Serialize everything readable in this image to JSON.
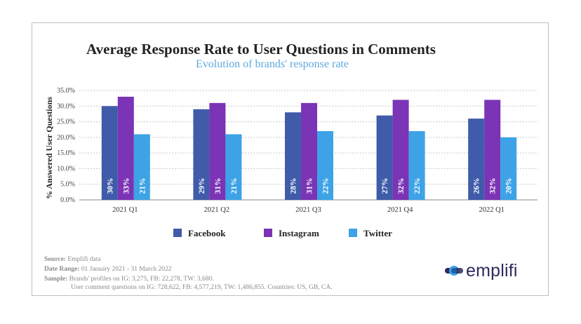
{
  "colors": {
    "facebook": "#3f5ba9",
    "instagram": "#7a34b5",
    "twitter": "#3da3e6",
    "subtitle": "#5ea9dd",
    "grid": "#c8c8c8",
    "logo_dark": "#2b2b5c"
  },
  "chart_data": {
    "type": "bar",
    "title": "Average Response Rate to User Questions in Comments",
    "subtitle": "Evolution of brands' response rate",
    "ylabel": "% Answered User Questions",
    "xlabel": "",
    "ylim": [
      0,
      35
    ],
    "yticks": [
      "0.0%",
      "5.0%",
      "10.0%",
      "15.0%",
      "20.0%",
      "25.0%",
      "30.0%",
      "35.0%"
    ],
    "grid": true,
    "legend_position": "bottom",
    "categories": [
      "2021 Q1",
      "2021 Q2",
      "2021 Q3",
      "2021 Q4",
      "2022 Q1"
    ],
    "series": [
      {
        "name": "Facebook",
        "values": [
          30,
          29,
          28,
          27,
          26
        ],
        "labels": [
          "30%",
          "29%",
          "28%",
          "27%",
          "26%"
        ]
      },
      {
        "name": "Instagram",
        "values": [
          33,
          31,
          31,
          32,
          32
        ],
        "labels": [
          "33%",
          "31%",
          "31%",
          "32%",
          "32%"
        ]
      },
      {
        "name": "Twitter",
        "values": [
          21,
          21,
          22,
          22,
          20
        ],
        "labels": [
          "21%",
          "21%",
          "22%",
          "22%",
          "20%"
        ]
      }
    ]
  },
  "footer": {
    "source_label": "Source:",
    "source_value": "Emplifi data",
    "date_label": "Date Range:",
    "date_value": "01 January 2021 - 31 March 2022",
    "sample_label": "Sample:",
    "sample_line1": "Brands' profiles on IG: 3,275, FB: 22,278, TW: 3,680.",
    "sample_line2": "User comment questions on IG: 728,622, FB: 4,577,219, TW: 1,486,855. Countries: US, GB, CA."
  },
  "logo": {
    "text": "emplifi",
    "icon": "emplifi-logo-icon"
  }
}
